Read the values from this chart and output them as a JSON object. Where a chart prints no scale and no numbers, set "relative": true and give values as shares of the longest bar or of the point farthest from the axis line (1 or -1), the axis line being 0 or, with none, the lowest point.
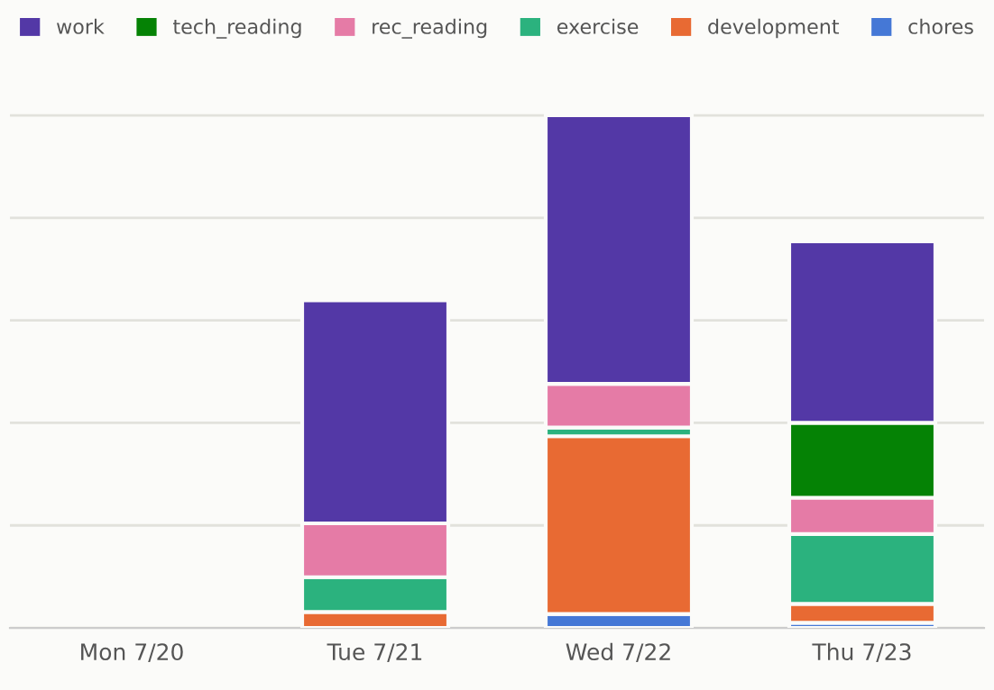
{
  "chart_data": {
    "type": "bar",
    "stacked": true,
    "relative": true,
    "grid": "y",
    "legend": "top",
    "categories": [
      "Mon 7/20",
      "Tue 7/21",
      "Wed 7/22",
      "Thu 7/23"
    ],
    "series": [
      {
        "name": "chores",
        "color": "#4578d6",
        "values": [
          0,
          0,
          0.027,
          0.01
        ]
      },
      {
        "name": "development",
        "color": "#e86a33",
        "values": [
          0,
          0.031,
          0.347,
          0.037
        ]
      },
      {
        "name": "exercise",
        "color": "#2bb27e",
        "values": [
          0,
          0.068,
          0.017,
          0.136
        ]
      },
      {
        "name": "rec_reading",
        "color": "#e57ba6",
        "values": [
          0,
          0.105,
          0.085,
          0.071
        ]
      },
      {
        "name": "tech_reading",
        "color": "#058205",
        "values": [
          0,
          0,
          0,
          0.146
        ]
      },
      {
        "name": "work",
        "color": "#5338a6",
        "values": [
          0,
          0.435,
          0.524,
          0.354
        ]
      }
    ]
  }
}
